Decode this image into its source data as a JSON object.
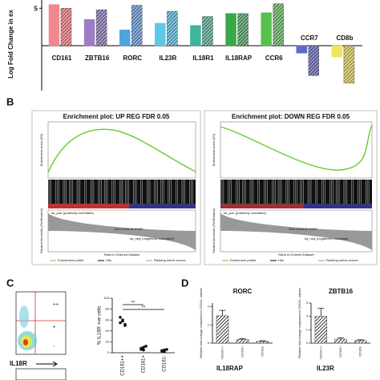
{
  "panels": [
    "B",
    "C",
    "D"
  ],
  "chart_data": [
    {
      "type": "bar",
      "ylabel": "Log Fold Change in ex",
      "categories": [
        "CD161",
        "ZBTB16",
        "RORC",
        "IL23R",
        "IL18R1",
        "IL18RAP",
        "CCR6",
        "CCR7",
        "CD8b"
      ],
      "series": [
        {
          "values": [
            5.5,
            3.5,
            2.1,
            3.0,
            2.7,
            4.3,
            4.4,
            -1.0,
            -1.5
          ],
          "colors": [
            "#f2888f",
            "#9c7cc4",
            "#4fa3e0",
            "#5fc7e8",
            "#3fb59a",
            "#3aa84a",
            "#55c24f",
            "#5b6cc8",
            "#f1e35a"
          ]
        },
        {
          "values": [
            5.0,
            4.8,
            5.4,
            4.6,
            3.9,
            4.3,
            5.6,
            -4.0,
            -5.0
          ],
          "pattern": "hatched",
          "colors": [
            "#e2505c",
            "#6a4c9c",
            "#3a78c2",
            "#2c9fcc",
            "#2a8f78",
            "#23803a",
            "#3a9a36",
            "#3b3f9a",
            "#c9b82a"
          ]
        }
      ],
      "ylim": [
        -6,
        6.1
      ],
      "yticks": [
        5
      ]
    },
    {
      "type": "scatter",
      "ylabel": "% IL18R +ve cells",
      "categories": [
        "CD161++",
        "CD161+",
        "CD161-"
      ],
      "points": [
        [
          55,
          60,
          50,
          65,
          58,
          52
        ],
        [
          8,
          5,
          12,
          6,
          10
        ],
        [
          3,
          5,
          6,
          4,
          2
        ]
      ],
      "annotations": [
        "**",
        "**"
      ],
      "ylim": [
        0,
        100
      ],
      "yticks": [
        0,
        20,
        40,
        60,
        80,
        100
      ],
      "color": "#111"
    },
    {
      "type": "bar",
      "title": "RORC",
      "ylabel": "Relative fold change compared to CD161- subset",
      "categories": [
        "CD161++",
        "CD161+",
        "CD161-"
      ],
      "values": [
        1.5,
        0.2,
        0.1
      ],
      "errors": [
        0.3,
        0.05,
        0.03
      ],
      "ylim": [
        0,
        2.2
      ],
      "yticks": [
        0,
        1,
        2
      ],
      "color": "#555"
    },
    {
      "type": "bar",
      "title": "ZBTB16",
      "ylabel": "Relative fold change compared to CD161- subset",
      "categories": [
        "CD161++",
        "CD161+",
        "CD161-"
      ],
      "values": [
        2.0,
        0.3,
        0.2
      ],
      "errors": [
        0.6,
        0.1,
        0.05
      ],
      "ylim": [
        0,
        3
      ],
      "yticks": [
        0,
        1,
        2,
        3
      ],
      "color": "#555"
    }
  ],
  "enrichment_plots": [
    {
      "title": "Enrichment plot: UP REG FDR 0.05",
      "zero_cross": "Zero cross at 10453"
    },
    {
      "title": "Enrichment plot: DOWN REG FDR 0.05",
      "zero_cross": "Zero cross at 10453"
    }
  ],
  "enrichment_common": {
    "es_label": "Enrichment score (ES)",
    "metric_label": "Ranked list metric (PreRanked)",
    "pos": "'na_pos' (positively correlated)",
    "neg": "'na_neg' (negatively correlated)",
    "xlabel": "Rank in Ordered Dataset",
    "legend": [
      "Enrichment profile",
      "Hits",
      "Ranking metric scores"
    ]
  },
  "flow": {
    "quadrants": [
      "++",
      "+",
      "-"
    ],
    "axis": "IL18R"
  },
  "lower_titles": [
    "IL18RAP",
    "IL23R"
  ]
}
